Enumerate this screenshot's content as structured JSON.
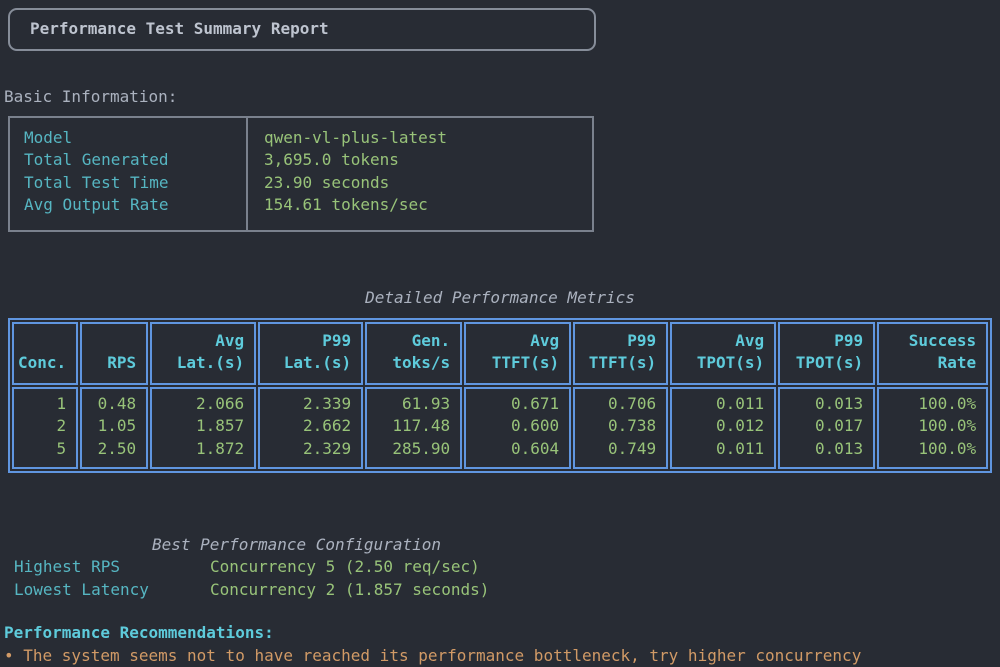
{
  "panel": {
    "title": "Performance Test Summary Report"
  },
  "basic_info": {
    "heading": "Basic Information:",
    "rows": [
      {
        "label": "Model",
        "value": "qwen-vl-plus-latest"
      },
      {
        "label": "Total Generated",
        "value": "3,695.0 tokens"
      },
      {
        "label": "Total Test Time",
        "value": "23.90 seconds"
      },
      {
        "label": "Avg Output Rate",
        "value": "154.61 tokens/sec"
      }
    ]
  },
  "metrics_table": {
    "title": "Detailed Performance Metrics",
    "columns": [
      "Conc.",
      "RPS",
      "Avg\nLat.(s)",
      "P99\nLat.(s)",
      "Gen.\ntoks/s",
      "Avg\nTTFT(s)",
      "P99\nTTFT(s)",
      "Avg\nTPOT(s)",
      "P99\nTPOT(s)",
      "Success\nRate"
    ],
    "rows": [
      [
        "1",
        "0.48",
        "2.066",
        "2.339",
        "61.93",
        "0.671",
        "0.706",
        "0.011",
        "0.013",
        "100.0%"
      ],
      [
        "2",
        "1.05",
        "1.857",
        "2.662",
        "117.48",
        "0.600",
        "0.738",
        "0.012",
        "0.017",
        "100.0%"
      ],
      [
        "5",
        "2.50",
        "1.872",
        "2.329",
        "285.90",
        "0.604",
        "0.749",
        "0.011",
        "0.013",
        "100.0%"
      ]
    ]
  },
  "best_config": {
    "title": "Best Performance Configuration",
    "rows": [
      {
        "label": "Highest RPS",
        "value": "Concurrency 5 (2.50 req/sec)"
      },
      {
        "label": "Lowest Latency",
        "value": "Concurrency 2 (1.857 seconds)"
      }
    ]
  },
  "recommendations": {
    "heading": "Performance Recommendations:",
    "items": [
      "• The system seems not to have reached its performance bottleneck, try higher concurrency"
    ]
  },
  "colors": {
    "background": "#282c34",
    "foreground": "#abb2bf",
    "cyan": "#56b6c2",
    "bright_cyan": "#5ecbdb",
    "green": "#98c379",
    "orange": "#d19a66",
    "table_border_blue": "#6096e0",
    "panel_border_gray": "#868d99"
  }
}
